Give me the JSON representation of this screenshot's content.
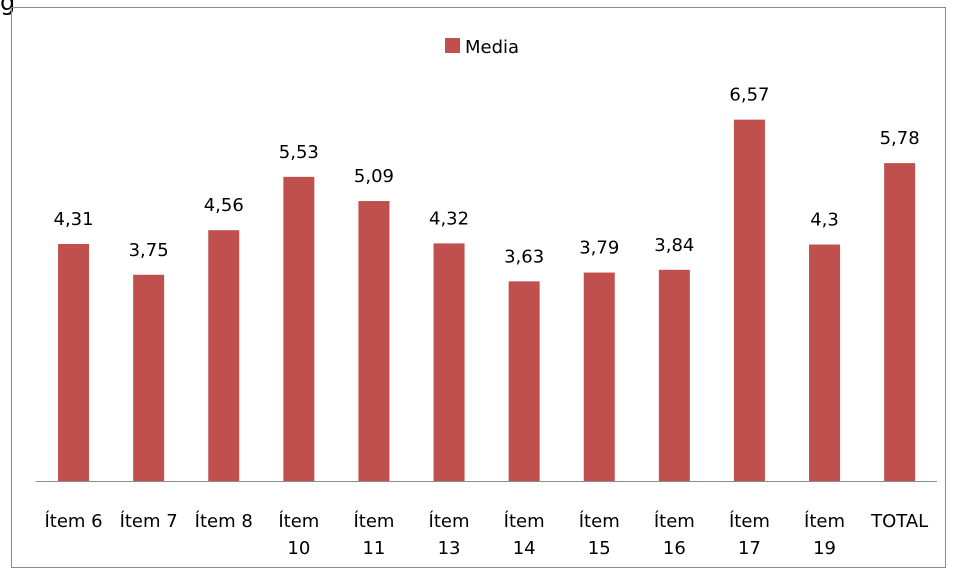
{
  "chart_data": {
    "type": "bar",
    "title": "",
    "xlabel": "",
    "ylabel": "",
    "ylim": [
      0,
      7
    ],
    "grid": false,
    "legend_position": "top-center",
    "categories": [
      "Ítem 6",
      "Ítem 7",
      "Ítem 8",
      "Ítem 10",
      "Ítem 11",
      "Ítem 13",
      "Ítem 14",
      "Ítem 15",
      "Ítem 16",
      "Ítem 17",
      "Ítem 19",
      "TOTAL"
    ],
    "series": [
      {
        "name": "Media",
        "color": "#c0504d",
        "values": [
          4.31,
          3.75,
          4.56,
          5.53,
          5.09,
          4.32,
          3.63,
          3.79,
          3.84,
          6.57,
          4.3,
          5.78
        ],
        "labels": [
          "4,31",
          "3,75",
          "4,56",
          "5,53",
          "5,09",
          "4,32",
          "3,63",
          "3,79",
          "3,84",
          "6,57",
          "4,3",
          "5,78"
        ]
      }
    ]
  }
}
